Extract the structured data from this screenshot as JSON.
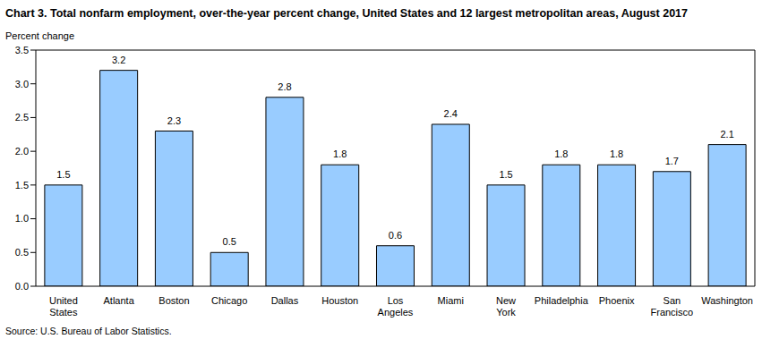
{
  "chart_data": {
    "type": "bar",
    "title": "Chart 3. Total nonfarm employment, over-the-year percent change, United States and 12 largest metropolitan areas, August 2017",
    "y_label": "Percent change",
    "source": "Source: U.S. Bureau of Labor Statistics.",
    "categories": [
      "United States",
      "Atlanta",
      "Boston",
      "Chicago",
      "Dallas",
      "Houston",
      "Los Angeles",
      "Miami",
      "New York",
      "Philadelphia",
      "Phoenix",
      "San Francisco",
      "Washington"
    ],
    "values": [
      1.5,
      3.2,
      2.3,
      0.5,
      2.8,
      1.8,
      0.6,
      2.4,
      1.5,
      1.8,
      1.8,
      1.7,
      2.1
    ],
    "color": "#99ccff",
    "ylim": [
      0,
      3.5
    ],
    "yticks": [
      {
        "value": 0,
        "label": "0.0"
      },
      0.5,
      {
        "value": 1,
        "label": "1.0"
      },
      1.5,
      {
        "value": 2,
        "label": "2.0"
      },
      2.5,
      {
        "value": 3,
        "label": "3.0"
      },
      3.5
    ],
    "grid": false,
    "data_labels": true
  }
}
